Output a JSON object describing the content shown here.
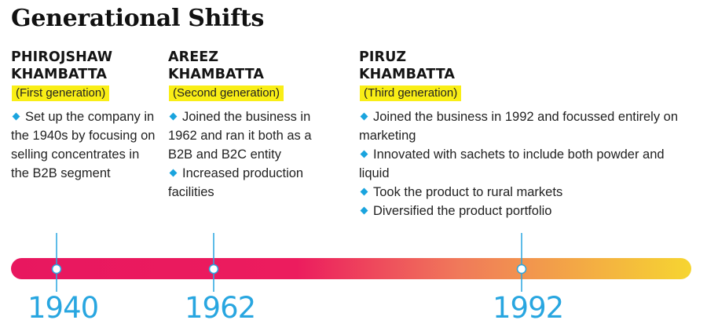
{
  "title": "Generational Shifts",
  "generations": [
    {
      "name_line1": "PHIROJSHAW",
      "name_line2": "KHAMBATTA",
      "label": "First generation",
      "bullets": [
        "Set up the company in the 1940s by focusing on selling concentrates in the B2B segment"
      ]
    },
    {
      "name_line1": "AREEZ",
      "name_line2": "KHAMBATTA",
      "label": "Second generation",
      "bullets": [
        "Joined the business in 1962 and ran it both as a B2B and B2C entity",
        "Increased production facilities"
      ]
    },
    {
      "name_line1": "PIRUZ",
      "name_line2": "KHAMBATTA",
      "label": "Third generation",
      "bullets": [
        "Joined the business in 1992 and focussed entirely on marketing",
        "Innovated with sachets to include both powder and liquid",
        "Took the product to rural markets",
        "Diversified the product portfolio"
      ]
    }
  ],
  "timeline": {
    "years": [
      "1940",
      "1962",
      "1992"
    ],
    "gradient_colors": [
      "#e8175f",
      "#ec1c5e",
      "#f07a5a",
      "#f6c834"
    ],
    "line_color": "#28a6e0",
    "bullet_color": "#1aa4de",
    "highlight_color": "#f9ee16"
  }
}
